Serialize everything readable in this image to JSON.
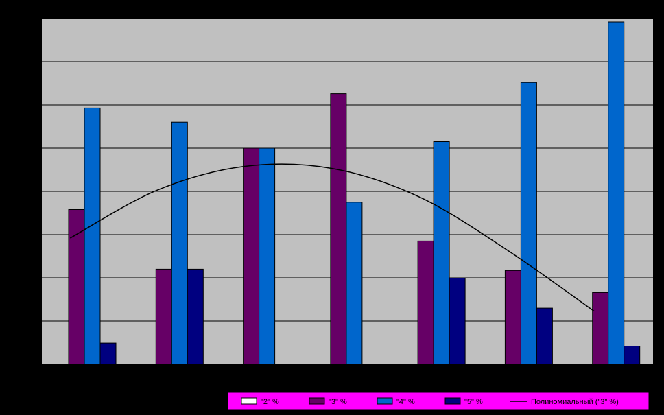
{
  "chart_data": {
    "type": "bar",
    "title": "",
    "xlabel": "",
    "ylabel": "",
    "categories": [
      "",
      "",
      "",
      "",
      "",
      "",
      ""
    ],
    "ylim": [
      0,
      80
    ],
    "grid": true,
    "tick_labels_visible": false,
    "legend_position": "bottom-right",
    "series": [
      {
        "name": "\"2\" %",
        "values": [
          0,
          0,
          0,
          0,
          0,
          0,
          0
        ],
        "color": "#ffffff"
      },
      {
        "name": "\"3\" %",
        "values": [
          35.8,
          22,
          50,
          62.6,
          28.5,
          21.7,
          16.6
        ],
        "color": "#660066"
      },
      {
        "name": "\"4\" %",
        "values": [
          59.3,
          56,
          50,
          37.5,
          51.5,
          65.2,
          79.2
        ],
        "color": "#0066cc"
      },
      {
        "name": "\"5\" %",
        "values": [
          4.9,
          22,
          0,
          0,
          20,
          13,
          4.2
        ],
        "color": "#000080"
      }
    ],
    "trendline": {
      "name": "Полиномиальный (\"3\" %)",
      "type": "polynomial",
      "of_series": "\"3\" %",
      "values": [
        29.2,
        40.3,
        45.8,
        45.3,
        38.7,
        26.5,
        12.3
      ],
      "color": "#000000"
    }
  },
  "colors": {
    "page_background": "#000000",
    "plot_background": "#c0c0c0",
    "gridline": "#000000",
    "legend_background": "#ff00ff"
  }
}
